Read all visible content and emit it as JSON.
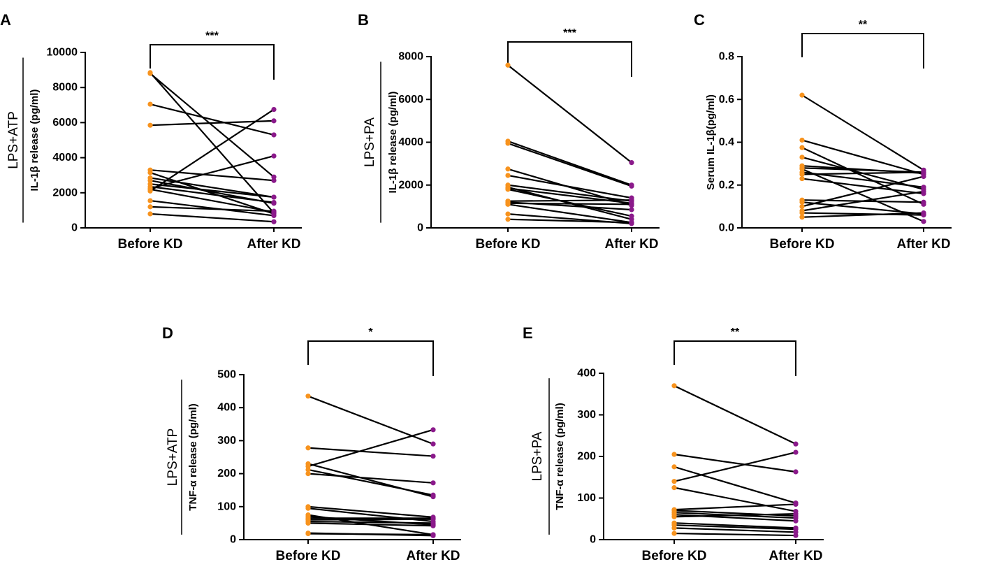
{
  "chart_data": [
    {
      "id": "A",
      "type": "line",
      "panel_label": "A",
      "ylabel_main": "LPS+ATP",
      "ylabel_sub": "IL-1β release (pg/ml)",
      "categories": [
        "Before KD",
        "After KD"
      ],
      "ylim": [
        0,
        10000
      ],
      "yticks": [
        0,
        2000,
        4000,
        6000,
        8000,
        10000
      ],
      "tick_labels": [
        "0",
        "2000",
        "4000",
        "6000",
        "8000",
        "10000"
      ],
      "significance": "***",
      "pairs": [
        [
          8800,
          2900
        ],
        [
          8850,
          850
        ],
        [
          7050,
          5300
        ],
        [
          5850,
          6100
        ],
        [
          3300,
          2700
        ],
        [
          3150,
          800
        ],
        [
          2850,
          1750
        ],
        [
          2700,
          1400
        ],
        [
          2500,
          1750
        ],
        [
          2350,
          1450
        ],
        [
          2250,
          4100
        ],
        [
          2200,
          900
        ],
        [
          2100,
          6750
        ],
        [
          1550,
          700
        ],
        [
          1200,
          950
        ],
        [
          800,
          350
        ]
      ],
      "colors": {
        "before": "#F7931E",
        "after": "#8B1A8B",
        "line": "#000000"
      }
    },
    {
      "id": "B",
      "type": "line",
      "panel_label": "B",
      "ylabel_main": "LPS+PA",
      "ylabel_sub": "IL-1β release (pg/ml)",
      "categories": [
        "Before KD",
        "After KD"
      ],
      "ylim": [
        0,
        8000
      ],
      "yticks": [
        0,
        2000,
        4000,
        6000,
        8000
      ],
      "tick_labels": [
        "0",
        "2000",
        "4000",
        "6000",
        "8000"
      ],
      "significance": "***",
      "pairs": [
        [
          7600,
          3050
        ],
        [
          4050,
          2000
        ],
        [
          3950,
          1950
        ],
        [
          2750,
          1050
        ],
        [
          2450,
          1400
        ],
        [
          2000,
          1250
        ],
        [
          1900,
          400
        ],
        [
          1850,
          1150
        ],
        [
          1800,
          550
        ],
        [
          1250,
          1300
        ],
        [
          1200,
          850
        ],
        [
          1150,
          1100
        ],
        [
          1100,
          250
        ],
        [
          650,
          200
        ],
        [
          400,
          250
        ]
      ],
      "colors": {
        "before": "#F7931E",
        "after": "#8B1A8B",
        "line": "#000000"
      }
    },
    {
      "id": "C",
      "type": "line",
      "panel_label": "C",
      "ylabel_main": "",
      "ylabel_sub": "Serum IL-1β(pg/ml)",
      "categories": [
        "Before KD",
        "After KD"
      ],
      "ylim": [
        0,
        0.8
      ],
      "yticks": [
        0,
        0.2,
        0.4,
        0.6,
        0.8
      ],
      "tick_labels": [
        "0.0",
        "0.2",
        "0.4",
        "0.6",
        "0.8"
      ],
      "significance": "**",
      "pairs": [
        [
          0.62,
          0.27
        ],
        [
          0.41,
          0.25
        ],
        [
          0.375,
          0.11
        ],
        [
          0.33,
          0.18
        ],
        [
          0.29,
          0.255
        ],
        [
          0.28,
          0.26
        ],
        [
          0.275,
          0.03
        ],
        [
          0.26,
          0.19
        ],
        [
          0.25,
          0.26
        ],
        [
          0.23,
          0.16
        ],
        [
          0.13,
          0.12
        ],
        [
          0.12,
          0.065
        ],
        [
          0.1,
          0.24
        ],
        [
          0.08,
          0.17
        ],
        [
          0.07,
          0.06
        ],
        [
          0.05,
          0.07
        ]
      ],
      "colors": {
        "before": "#F7931E",
        "after": "#8B1A8B",
        "line": "#000000"
      }
    },
    {
      "id": "D",
      "type": "line",
      "panel_label": "D",
      "ylabel_main": "LPS+ATP",
      "ylabel_sub": "TNF-α release (pg/ml)",
      "categories": [
        "Before KD",
        "After KD"
      ],
      "ylim": [
        0,
        500
      ],
      "yticks": [
        0,
        100,
        200,
        300,
        400,
        500
      ],
      "tick_labels": [
        "0",
        "100",
        "200",
        "300",
        "400",
        "500"
      ],
      "significance": "*",
      "pairs": [
        [
          435,
          290
        ],
        [
          278,
          253
        ],
        [
          230,
          130
        ],
        [
          222,
          333
        ],
        [
          212,
          135
        ],
        [
          200,
          172
        ],
        [
          100,
          68
        ],
        [
          95,
          55
        ],
        [
          75,
          15
        ],
        [
          70,
          45
        ],
        [
          65,
          65
        ],
        [
          60,
          62
        ],
        [
          55,
          50
        ],
        [
          50,
          42
        ],
        [
          20,
          12
        ],
        [
          18,
          15
        ]
      ],
      "colors": {
        "before": "#F7931E",
        "after": "#8B1A8B",
        "line": "#000000"
      }
    },
    {
      "id": "E",
      "type": "line",
      "panel_label": "E",
      "ylabel_main": "LPS+PA",
      "ylabel_sub": "TNF-α release (pg/ml)",
      "categories": [
        "Before KD",
        "After KD"
      ],
      "ylim": [
        0,
        400
      ],
      "yticks": [
        0,
        100,
        200,
        300,
        400
      ],
      "tick_labels": [
        "0",
        "100",
        "200",
        "300",
        "400"
      ],
      "significance": "**",
      "pairs": [
        [
          370,
          230
        ],
        [
          205,
          163
        ],
        [
          175,
          88
        ],
        [
          140,
          210
        ],
        [
          125,
          68
        ],
        [
          72,
          85
        ],
        [
          70,
          57
        ],
        [
          65,
          52
        ],
        [
          60,
          45
        ],
        [
          55,
          62
        ],
        [
          40,
          28
        ],
        [
          35,
          25
        ],
        [
          28,
          18
        ],
        [
          15,
          10
        ]
      ],
      "colors": {
        "before": "#F7931E",
        "after": "#8B1A8B",
        "line": "#000000"
      }
    }
  ]
}
